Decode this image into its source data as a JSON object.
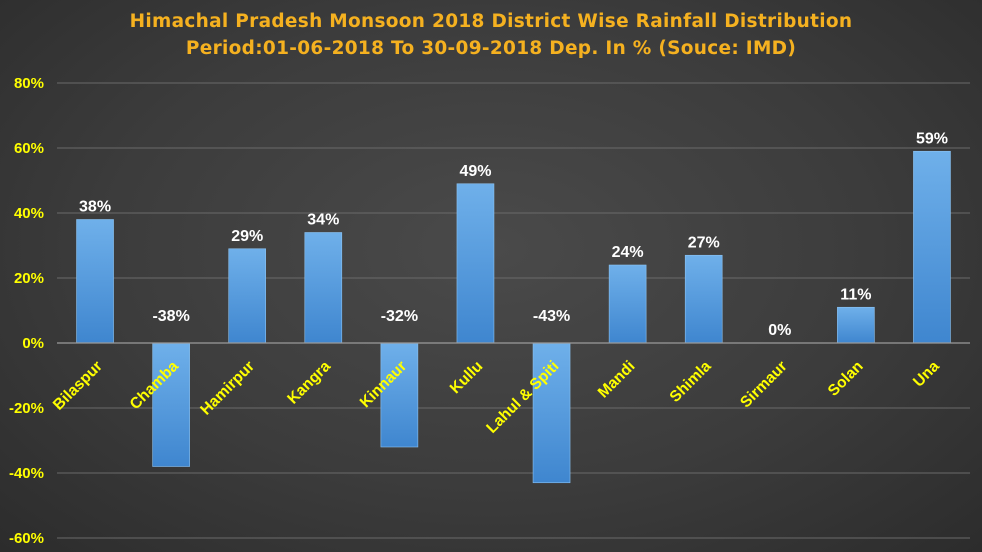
{
  "colors": {
    "title": "#f5b120",
    "tick": "#ffff00",
    "bar_top": "#6fb0ea",
    "bar_bottom": "#3f86cf",
    "value_label": "#ffffff",
    "grid": "#6a6a6a",
    "axis": "#9a9a9a"
  },
  "chart_data": {
    "type": "bar",
    "title": "Himachal Pradesh Monsoon 2018 District Wise Rainfall Distribution",
    "subtitle": "Period:01-06-2018 To 30-09-2018 Dep. In % (Souce: IMD)",
    "categories": [
      "Bilaspur",
      "Chamba",
      "Hamirpur",
      "Kangra",
      "Kinnaur",
      "Kullu",
      "Lahul & Spiti",
      "Mandi",
      "Shimla",
      "Sirmaur",
      "Solan",
      "Una"
    ],
    "values": [
      38,
      -38,
      29,
      34,
      -32,
      49,
      -43,
      24,
      27,
      0,
      11,
      59
    ],
    "data_labels": [
      "38%",
      "-38%",
      "29%",
      "34%",
      "-32%",
      "49%",
      "-43%",
      "24%",
      "27%",
      "0%",
      "11%",
      "59%"
    ],
    "ylim": [
      -60,
      80
    ],
    "yticks": [
      80,
      60,
      40,
      20,
      0,
      -20,
      -40,
      -60
    ],
    "ytick_labels": [
      "80%",
      "60%",
      "40%",
      "20%",
      "0%",
      "-20%",
      "-40%",
      "-60%"
    ],
    "grid": true,
    "legend": "none"
  }
}
